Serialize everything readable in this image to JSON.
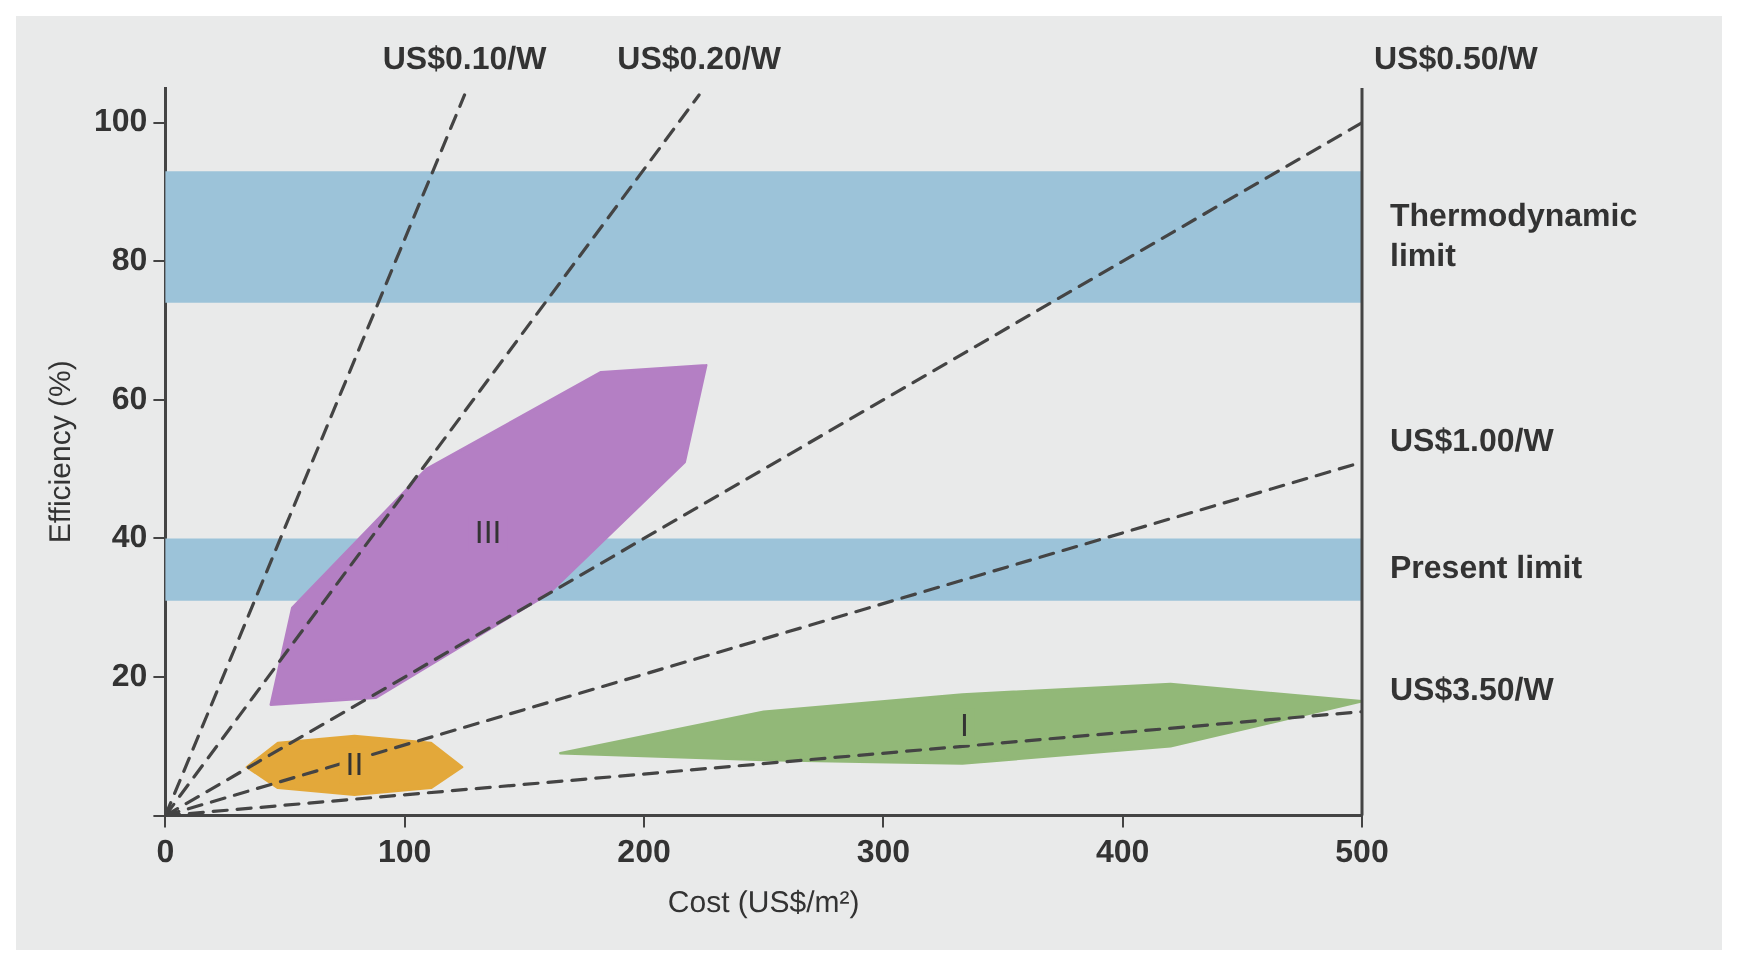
{
  "chart_data": {
    "type": "line",
    "xlabel": "Cost (US$/m²)",
    "ylabel": "Efficiency (%)",
    "xlim": [
      0,
      500
    ],
    "ylim": [
      0,
      105
    ],
    "xticks": [
      0,
      100,
      200,
      300,
      400,
      500
    ],
    "yticks": [
      {
        "value": 0,
        "label": null
      },
      20,
      40,
      60,
      80,
      100
    ],
    "grid": false,
    "legend": false,
    "marker": "none",
    "bands": [
      {
        "axis": "y",
        "from": 74,
        "to": 93,
        "label": "Thermodynamic limit",
        "color": "#9cc3d9"
      },
      {
        "axis": "y",
        "from": 31,
        "to": 40,
        "label": "Present limit",
        "color": "#9cc3d9"
      }
    ],
    "series": [
      {
        "name": "US$0.10/W",
        "type": "line",
        "line_style": "dashed",
        "color": "#444444",
        "x": [
          0,
          125
        ],
        "values": [
          0,
          104
        ]
      },
      {
        "name": "US$0.20/W",
        "type": "line",
        "line_style": "dashed",
        "color": "#444444",
        "x": [
          0,
          223
        ],
        "values": [
          0,
          104
        ]
      },
      {
        "name": "US$0.50/W",
        "type": "line",
        "line_style": "dashed",
        "color": "#444444",
        "x": [
          0,
          500
        ],
        "values": [
          0,
          100
        ]
      },
      {
        "name": "US$1.00/W",
        "type": "line",
        "line_style": "dashed",
        "color": "#444444",
        "x": [
          0,
          500
        ],
        "values": [
          0,
          51
        ]
      },
      {
        "name": "US$3.50/W",
        "type": "line",
        "line_style": "dashed",
        "color": "#444444",
        "x": [
          0,
          500
        ],
        "values": [
          0,
          15
        ]
      },
      {
        "name": "III",
        "type": "area",
        "line_style": "solid",
        "color": "#b47fc4",
        "x": [
          226,
          217,
          160,
          88,
          44,
          53,
          109,
          182,
          226
        ],
        "values": [
          65,
          51,
          32,
          17,
          16,
          30,
          50,
          64,
          65
        ]
      },
      {
        "name": "II",
        "type": "area",
        "line_style": "solid",
        "color": "#e3a83a",
        "x": [
          124,
          111,
          79,
          47,
          34,
          47,
          79,
          111,
          124
        ],
        "values": [
          7,
          10.5,
          11.5,
          10.5,
          7,
          4,
          3,
          4,
          7
        ]
      },
      {
        "name": "I",
        "type": "area",
        "line_style": "solid",
        "color": "#92b878",
        "x": [
          500,
          420,
          333,
          250,
          165,
          250,
          333,
          420,
          500
        ],
        "values": [
          16.5,
          19,
          17.5,
          15,
          9,
          8,
          7.5,
          10,
          16.5
        ]
      }
    ]
  }
}
